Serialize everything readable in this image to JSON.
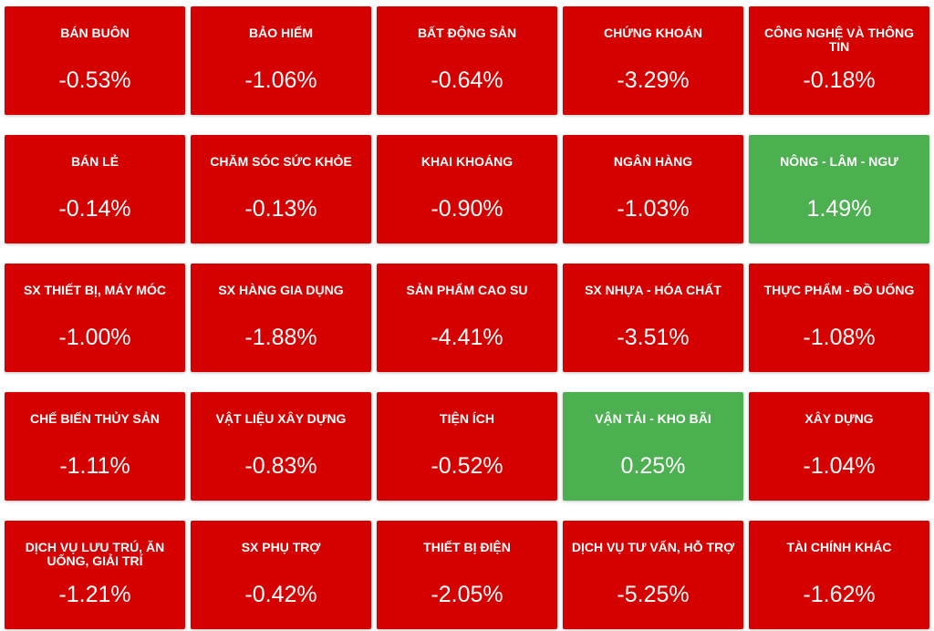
{
  "colors": {
    "negative": "#d50000",
    "positive": "#4caf50",
    "text": "#ffffff"
  },
  "sectors": [
    {
      "name": "BÁN BUÔN",
      "change": "-0.53%",
      "status": "negative"
    },
    {
      "name": "BẢO HIỂM",
      "change": "-1.06%",
      "status": "negative"
    },
    {
      "name": "BẤT ĐỘNG SẢN",
      "change": "-0.64%",
      "status": "negative"
    },
    {
      "name": "CHỨNG KHOÁN",
      "change": "-3.29%",
      "status": "negative"
    },
    {
      "name": "CÔNG NGHỆ VÀ THÔNG TIN",
      "change": "-0.18%",
      "status": "negative"
    },
    {
      "name": "BÁN LẺ",
      "change": "-0.14%",
      "status": "negative"
    },
    {
      "name": "CHĂM SÓC SỨC KHỎE",
      "change": "-0.13%",
      "status": "negative"
    },
    {
      "name": "KHAI KHOÁNG",
      "change": "-0.90%",
      "status": "negative"
    },
    {
      "name": "NGÂN HÀNG",
      "change": "-1.03%",
      "status": "negative"
    },
    {
      "name": "NÔNG - LÂM - NGƯ",
      "change": "1.49%",
      "status": "positive"
    },
    {
      "name": "SX THIẾT BỊ, MÁY MÓC",
      "change": "-1.00%",
      "status": "negative"
    },
    {
      "name": "SX HÀNG GIA DỤNG",
      "change": "-1.88%",
      "status": "negative"
    },
    {
      "name": "SẢN PHẨM CAO SU",
      "change": "-4.41%",
      "status": "negative"
    },
    {
      "name": "SX NHỰA - HÓA CHẤT",
      "change": "-3.51%",
      "status": "negative"
    },
    {
      "name": "THỰC PHẨM - ĐỒ UỐNG",
      "change": "-1.08%",
      "status": "negative"
    },
    {
      "name": "CHẾ BIẾN THỦY SẢN",
      "change": "-1.11%",
      "status": "negative"
    },
    {
      "name": "VẬT LIỆU XÂY DỰNG",
      "change": "-0.83%",
      "status": "negative"
    },
    {
      "name": "TIỆN ÍCH",
      "change": "-0.52%",
      "status": "negative"
    },
    {
      "name": "VẬN TẢI - KHO BÃI",
      "change": "0.25%",
      "status": "positive"
    },
    {
      "name": "XÂY DỰNG",
      "change": "-1.04%",
      "status": "negative"
    },
    {
      "name": "DỊCH VỤ LƯU TRÚ, ĂN UỐNG, GIẢI TRÍ",
      "change": "-1.21%",
      "status": "negative"
    },
    {
      "name": "SX PHỤ TRỢ",
      "change": "-0.42%",
      "status": "negative"
    },
    {
      "name": "THIẾT BỊ ĐIỆN",
      "change": "-2.05%",
      "status": "negative"
    },
    {
      "name": "DỊCH VỤ TƯ VẤN, HỖ TRỢ",
      "change": "-5.25%",
      "status": "negative"
    },
    {
      "name": "TÀI CHÍNH KHÁC",
      "change": "-1.62%",
      "status": "negative"
    }
  ]
}
